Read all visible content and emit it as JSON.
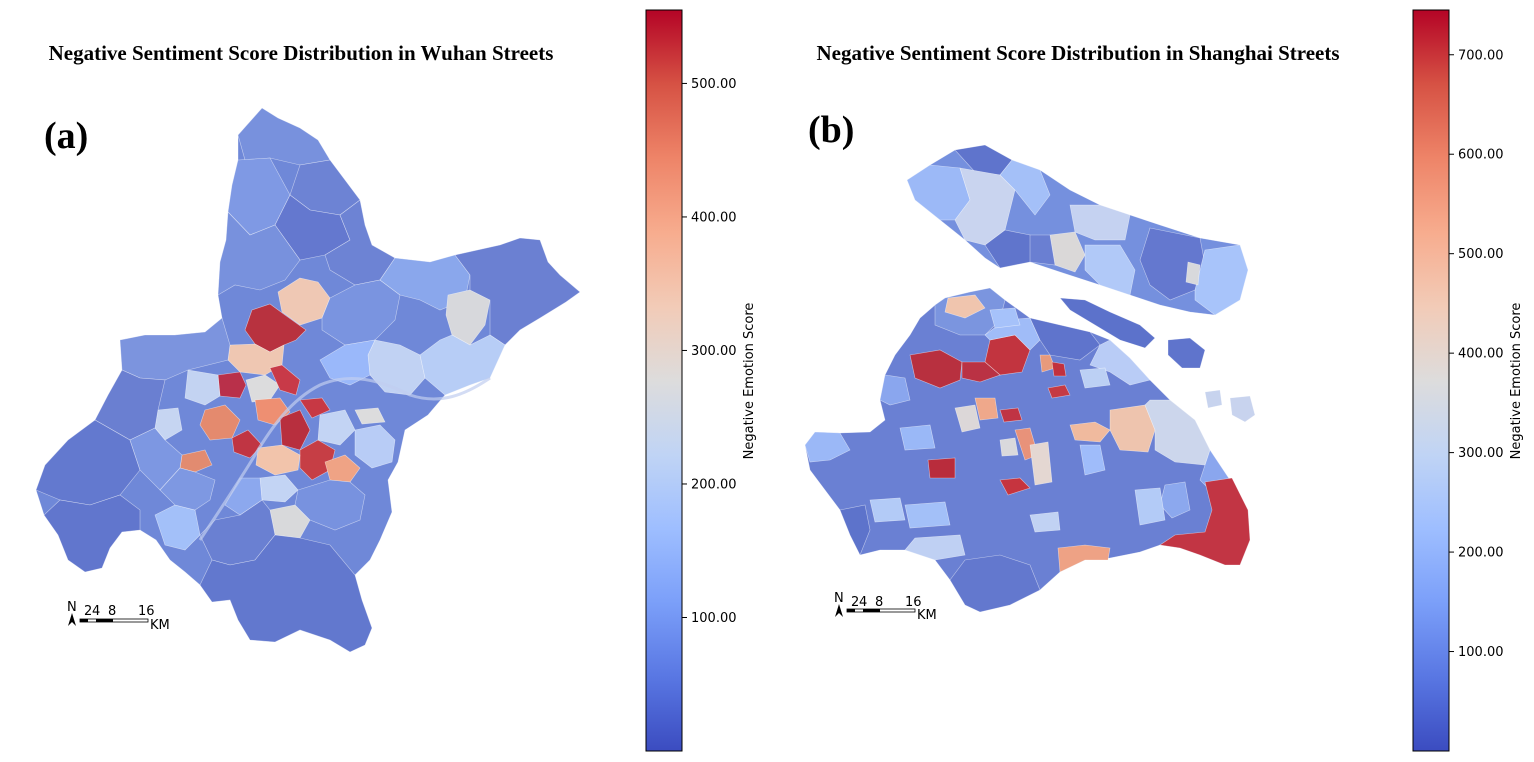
{
  "colors": {
    "cmap": [
      "#3b4cc0",
      "#5977e3",
      "#7b9ff9",
      "#9ebeff",
      "#c0d4f5",
      "#dddcdc",
      "#f2cbb7",
      "#f7ac8e",
      "#ee8468",
      "#d65244",
      "#b40426"
    ],
    "background": "#ffffff"
  },
  "panels": [
    {
      "label": "(a)",
      "title": "Negative Sentiment Score Distribution in Wuhan Streets",
      "colorbar": {
        "label": "Negative Emotion Score",
        "min": 0,
        "max": 555,
        "ticks": [
          {
            "value": 100,
            "text": "100.00"
          },
          {
            "value": 200,
            "text": "200.00"
          },
          {
            "value": 300,
            "text": "300.00"
          },
          {
            "value": 400,
            "text": "400.00"
          },
          {
            "value": 500,
            "text": "500.00"
          }
        ]
      },
      "scalebar": {
        "north": "N",
        "ticks": [
          "2",
          "4",
          "8",
          "16"
        ],
        "unit": "KM"
      }
    },
    {
      "label": "(b)",
      "title": "Negative Sentiment Score Distribution in Shanghai Streets",
      "colorbar": {
        "label": "Negative Emotion Score",
        "min": 0,
        "max": 745,
        "ticks": [
          {
            "value": 100,
            "text": "100.00"
          },
          {
            "value": 200,
            "text": "200.00"
          },
          {
            "value": 300,
            "text": "300.00"
          },
          {
            "value": 400,
            "text": "400.00"
          },
          {
            "value": 500,
            "text": "500.00"
          },
          {
            "value": 600,
            "text": "600.00"
          },
          {
            "value": 700,
            "text": "700.00"
          }
        ]
      },
      "scalebar": {
        "north": "N",
        "ticks": [
          "2",
          "4",
          "8",
          "16"
        ],
        "unit": "KM"
      }
    }
  ]
}
